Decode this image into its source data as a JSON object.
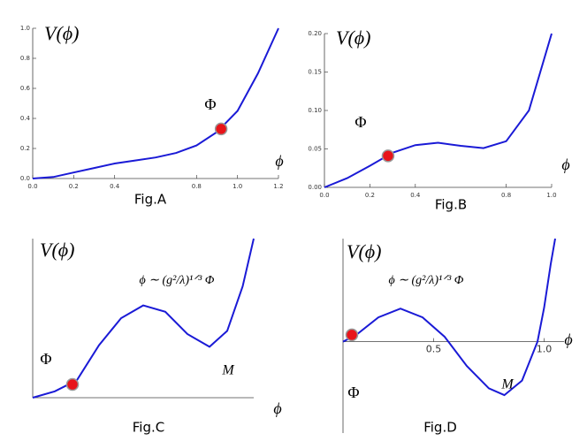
{
  "chart_data": [
    {
      "type": "line",
      "title": "Fig.A",
      "y_label": "V(ϕ)",
      "x_label": "ϕ",
      "marker_label": "Φ",
      "x": [
        0,
        0.1,
        0.2,
        0.3,
        0.4,
        0.5,
        0.6,
        0.7,
        0.8,
        0.9,
        1.0,
        1.1,
        1.2
      ],
      "values": [
        0,
        0.01,
        0.04,
        0.07,
        0.1,
        0.12,
        0.14,
        0.17,
        0.22,
        0.31,
        0.45,
        0.7,
        1.0
      ],
      "color": "#1a1ad6",
      "marker": {
        "x": 0.92,
        "y": 0.33,
        "color": "#e8141a"
      },
      "xlim": [
        0,
        1.2
      ],
      "ylim": [
        0,
        1.0
      ],
      "xticks": [
        {
          "value": 0,
          "label": "0.0"
        },
        0.2,
        0.4,
        0.8,
        {
          "value": 1,
          "label": "1.0"
        },
        1.2
      ],
      "yticks": [
        {
          "value": 0,
          "label": "0.0"
        },
        0.2,
        0.4,
        0.6,
        0.8,
        {
          "value": 1,
          "label": "1.0"
        }
      ]
    },
    {
      "type": "line",
      "title": "Fig.B",
      "y_label": "V(ϕ)",
      "x_label": "ϕ",
      "marker_label": "Φ",
      "x": [
        0,
        0.1,
        0.2,
        0.3,
        0.4,
        0.5,
        0.6,
        0.7,
        0.8,
        0.9,
        1.0
      ],
      "values": [
        0,
        0.012,
        0.028,
        0.045,
        0.055,
        0.058,
        0.054,
        0.051,
        0.06,
        0.1,
        0.2
      ],
      "color": "#1a1ad6",
      "marker": {
        "x": 0.28,
        "y": 0.041,
        "color": "#e8141a"
      },
      "xlim": [
        0,
        1.0
      ],
      "ylim": [
        0,
        0.2
      ],
      "xticks": [
        {
          "value": 0,
          "label": "0.0"
        },
        0.2,
        0.4,
        0.8,
        {
          "value": 1,
          "label": "1.0"
        }
      ],
      "yticks": [
        {
          "value": 0,
          "label": "0.00"
        },
        0.05,
        {
          "value": 0.1,
          "label": "0.10"
        },
        0.15,
        {
          "value": 0.2,
          "label": "0.20"
        }
      ]
    },
    {
      "type": "line",
      "title": "Fig.C",
      "y_label": "V(ϕ)",
      "x_label": "ϕ",
      "marker_label": "Φ",
      "annotations": [
        "ϕ ∼ (g²/λ)¹ᐟ³ Φ",
        "M"
      ],
      "x": [
        0,
        0.1,
        0.2,
        0.3,
        0.4,
        0.5,
        0.6,
        0.7,
        0.8,
        0.88,
        0.95,
        1.0
      ],
      "values": [
        0,
        0.04,
        0.11,
        0.33,
        0.5,
        0.58,
        0.54,
        0.4,
        0.32,
        0.42,
        0.7,
        1.0
      ],
      "color": "#1a1ad6",
      "marker": {
        "x": 0.18,
        "y": 0.083,
        "color": "#e8141a"
      },
      "xlim": [
        0,
        1
      ],
      "ylim": [
        0,
        1
      ]
    },
    {
      "type": "line",
      "title": "Fig.D",
      "y_label": "V(ϕ)",
      "x_label": "ϕ",
      "marker_label": "Φ",
      "annotations": [
        "ϕ ∼ (g²/λ)¹ᐟ³ Φ",
        "M"
      ],
      "x": [
        0.09,
        0.15,
        0.25,
        0.35,
        0.45,
        0.55,
        0.65,
        0.75,
        0.82,
        0.9,
        0.97,
        1.0,
        1.03,
        1.05
      ],
      "values": [
        0,
        0.07,
        0.25,
        0.34,
        0.25,
        0.05,
        -0.25,
        -0.48,
        -0.55,
        -0.4,
        0,
        0.35,
        0.8,
        1.06
      ],
      "color": "#1a1ad6",
      "marker": {
        "x": 0.13,
        "y": 0.07,
        "color": "#e8141a"
      },
      "xlim": [
        0.09,
        1.09
      ],
      "ylim": [
        -0.94,
        1.06
      ],
      "xticks": [
        0.5,
        {
          "value": 1,
          "label": "1.0"
        }
      ]
    }
  ]
}
